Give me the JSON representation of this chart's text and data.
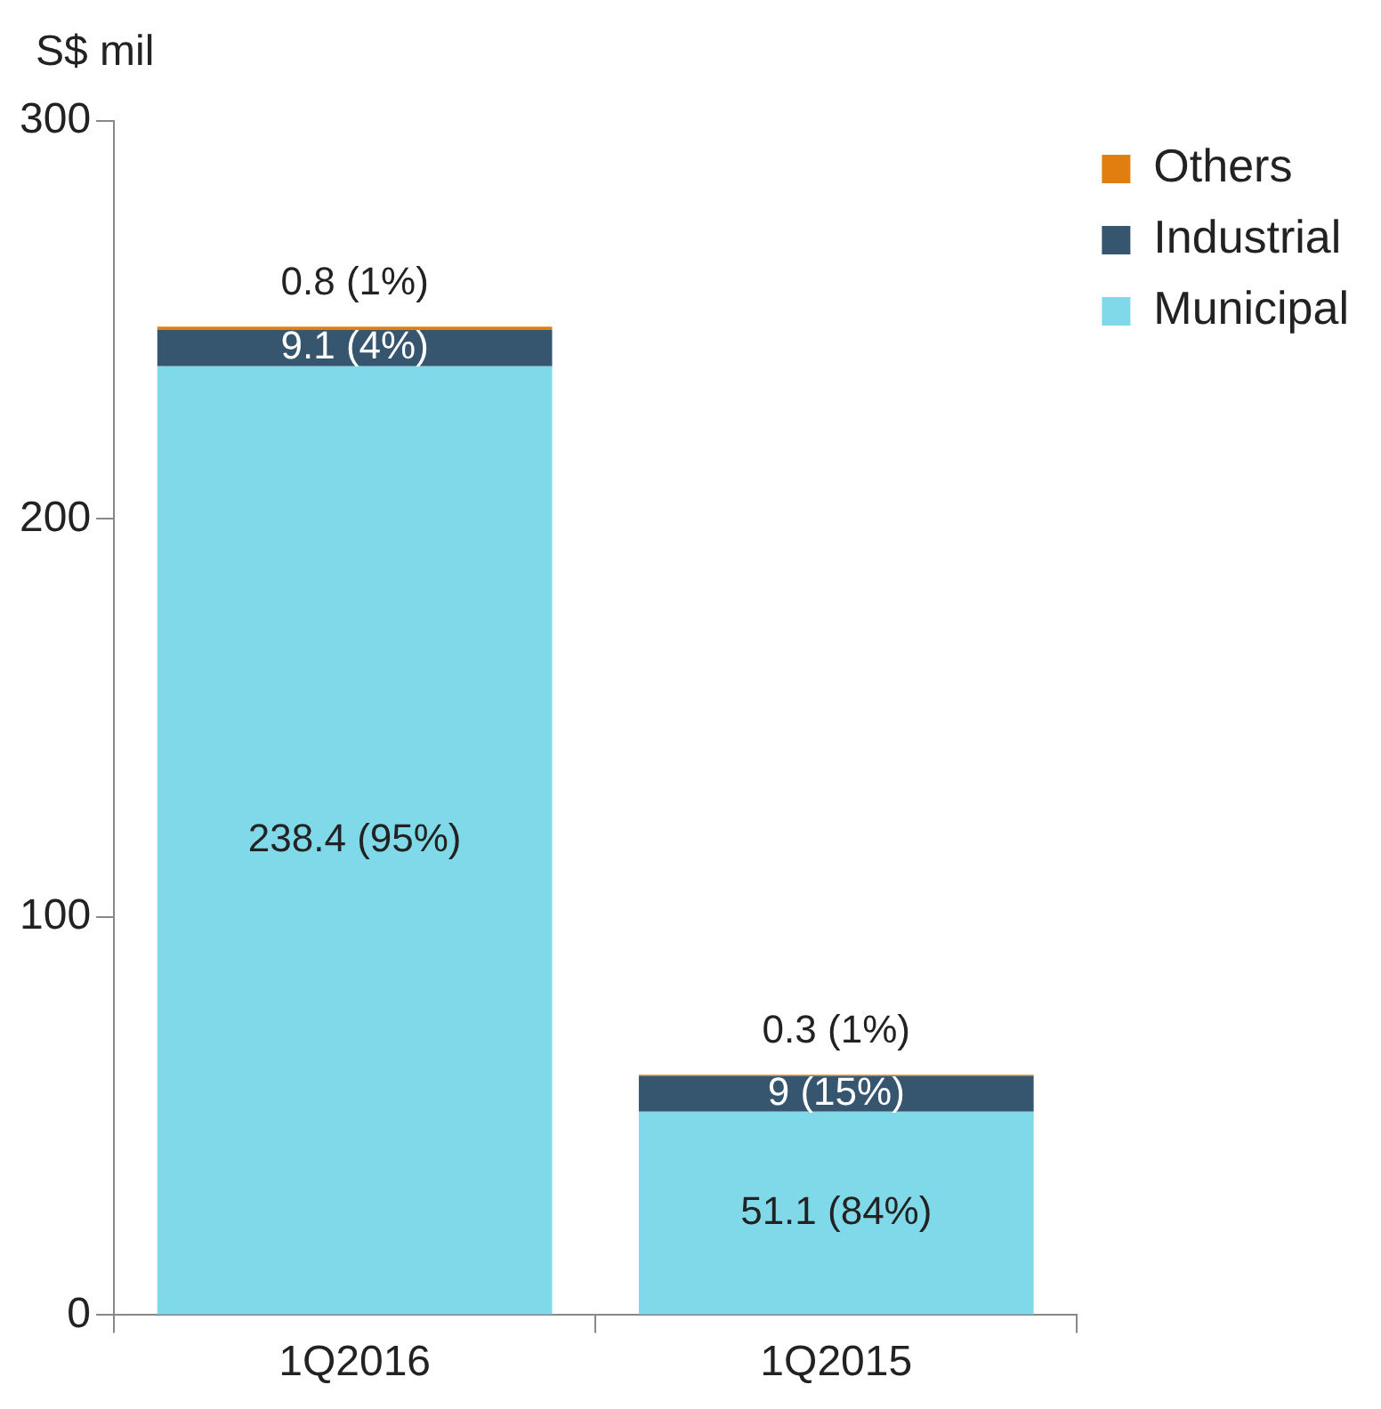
{
  "chart_data": {
    "type": "bar",
    "ylabel": "S$ mil",
    "categories": [
      "1Q2016",
      "1Q2015"
    ],
    "stacked": true,
    "ylim": [
      0,
      300
    ],
    "yticks": [
      0,
      100,
      200,
      300
    ],
    "grid": false,
    "legend": "top right",
    "series": [
      {
        "name": "Municipal",
        "color": "#80d9e8",
        "values": [
          238.4,
          51.1
        ],
        "value_labels": [
          "238.4 (95%)",
          "51.1 (84%)"
        ]
      },
      {
        "name": "Industrial",
        "color": "#36556f",
        "values": [
          9.1,
          9
        ],
        "value_labels": [
          "9.1 (4%)",
          "9 (15%)"
        ]
      },
      {
        "name": "Others",
        "color": "#e07f10",
        "values": [
          0.8,
          0.3
        ],
        "value_labels": [
          "0.8 (1%)",
          "0.3 (1%)"
        ]
      }
    ]
  }
}
